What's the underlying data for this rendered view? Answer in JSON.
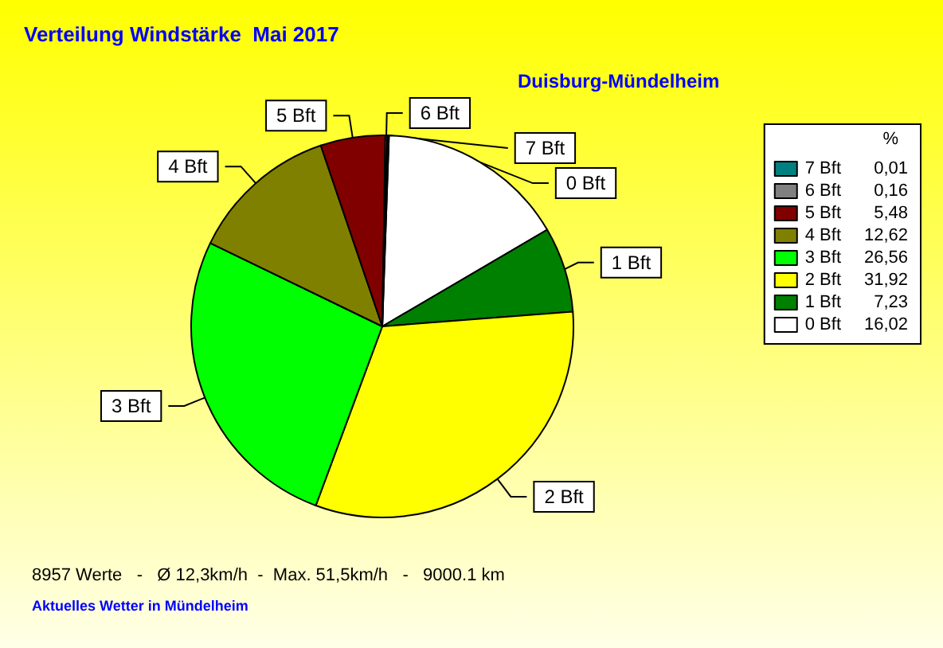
{
  "chart_data": {
    "type": "pie",
    "title": "Verteilung Windstärke  Mai 2017",
    "subtitle": "Duisburg-Mündelheim",
    "legend_title": "%",
    "legend": "top right",
    "categories": [
      "0 Bft",
      "1 Bft",
      "2 Bft",
      "3 Bft",
      "4 Bft",
      "5 Bft",
      "6 Bft",
      "7 Bft"
    ],
    "values": [
      16.02,
      7.23,
      31.92,
      26.56,
      12.62,
      5.48,
      0.16,
      0.01
    ],
    "value_labels": [
      "16,02",
      "7,23",
      "31,92",
      "26,56",
      "12,62",
      "5,48",
      "0,16",
      "0,01"
    ],
    "colors": [
      "#ffffff",
      "#008000",
      "#ffff00",
      "#00ff00",
      "#808000",
      "#800000",
      "#808080",
      "#008080"
    ],
    "annotations": [
      "8957 Werte   -   Ø 12,3km/h  -  Max. 51,5km/h   -   9000.1 km",
      "Aktuelles Wetter in Mündelheim"
    ]
  }
}
